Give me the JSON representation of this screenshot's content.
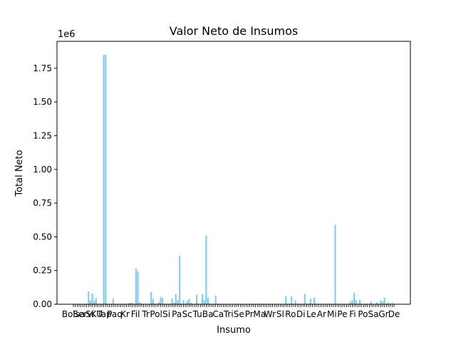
{
  "chart_data": {
    "type": "bar",
    "title": "Valor Neto de Insumos",
    "xlabel": "Insumo",
    "ylabel": "Total Neto",
    "offset_text": "1e6",
    "ylim": [
      0,
      1950000
    ],
    "yticks": [
      0,
      250000,
      500000,
      750000,
      1000000,
      1250000,
      1500000,
      1750000
    ],
    "ytick_labels": [
      "0.00",
      "0.25",
      "0.50",
      "0.75",
      "1.00",
      "1.25",
      "1.50",
      "1.75"
    ],
    "grid": false,
    "bar_color": "#87ceeb",
    "tick_labels_visible": [
      "Bolsa",
      "Servi",
      "SKU",
      "Tap",
      "Paq",
      "Kr",
      "Fil",
      "Tr",
      "Pol",
      "Si",
      "Pa",
      "Sc",
      "Tu",
      "Ba",
      "Ca",
      "Tri",
      "Se",
      "Pr",
      "Ma",
      "Wr",
      "Sl",
      "Ro",
      "Di",
      "Le",
      "Ar",
      "Mi",
      "Pe",
      "Fi",
      "Po",
      "Sa",
      "Gr",
      "De"
    ],
    "values": [
      0,
      0,
      0,
      0,
      0,
      0,
      0,
      0,
      95000,
      30000,
      80000,
      25000,
      45000,
      0,
      0,
      0,
      1850000,
      1850000,
      0,
      0,
      0,
      40000,
      0,
      0,
      0,
      0,
      0,
      0,
      0,
      8000,
      10000,
      10000,
      0,
      265000,
      245000,
      15000,
      0,
      0,
      0,
      0,
      0,
      90000,
      40000,
      0,
      0,
      15000,
      55000,
      45000,
      0,
      0,
      0,
      0,
      40000,
      10000,
      75000,
      30000,
      360000,
      0,
      30000,
      0,
      25000,
      40000,
      10000,
      0,
      0,
      70000,
      0,
      0,
      75000,
      30000,
      510000,
      50000,
      0,
      0,
      0,
      65000,
      0,
      0,
      0,
      0,
      0,
      0,
      0,
      0,
      0,
      0,
      0,
      0,
      0,
      0,
      0,
      0,
      0,
      0,
      0,
      0,
      0,
      0,
      0,
      0,
      0,
      0,
      0,
      0,
      0,
      0,
      0,
      0,
      0,
      0,
      0,
      0,
      60000,
      0,
      0,
      60000,
      0,
      30000,
      0,
      0,
      0,
      0,
      75000,
      0,
      0,
      40000,
      0,
      50000,
      0,
      0,
      0,
      0,
      0,
      0,
      0,
      0,
      0,
      0,
      590000,
      0,
      0,
      0,
      0,
      0,
      0,
      0,
      20000,
      30000,
      85000,
      30000,
      0,
      35000,
      0,
      0,
      0,
      0,
      0,
      20000,
      0,
      0,
      15000,
      0,
      30000,
      20000,
      50000,
      0,
      15000,
      0,
      10000,
      0
    ]
  }
}
